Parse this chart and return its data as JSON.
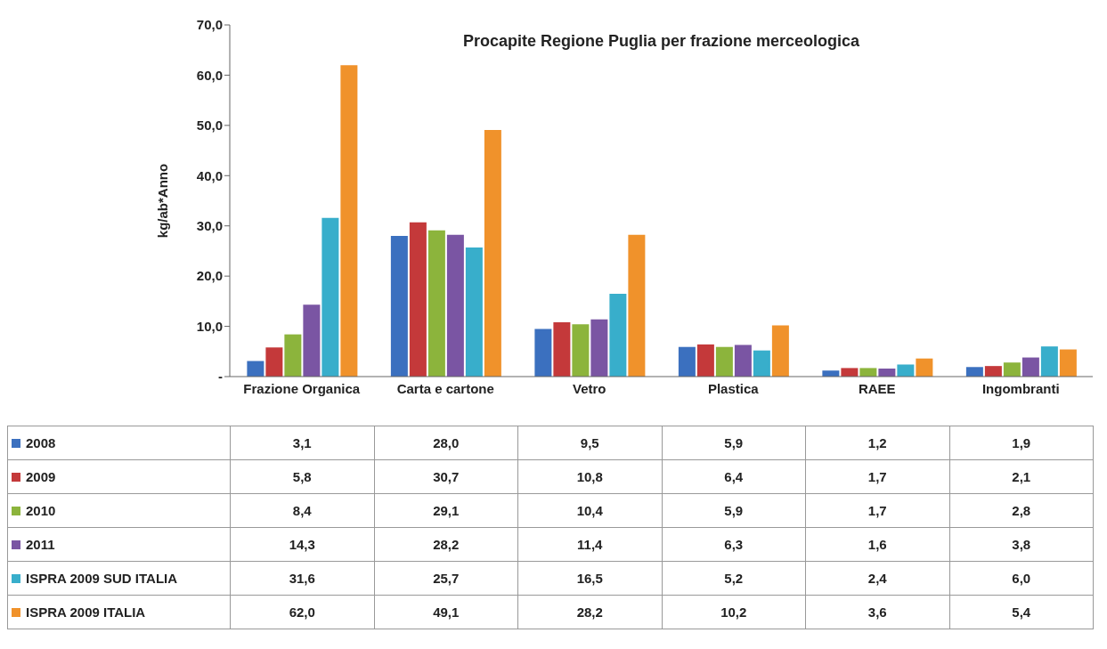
{
  "chart_data": {
    "type": "bar",
    "title": "Procapite Regione Puglia per frazione merceologica",
    "ylabel": "kg/ab*Anno",
    "categories": [
      "Frazione Organica",
      "Carta e cartone",
      "Vetro",
      "Plastica",
      "RAEE",
      "Ingombranti"
    ],
    "series": [
      {
        "name": "2008",
        "color": "#3b70bf",
        "values": [
          3.1,
          28.0,
          9.5,
          5.9,
          1.2,
          1.9
        ],
        "value_labels": [
          "3,1",
          "28,0",
          "9,5",
          "5,9",
          "1,2",
          "1,9"
        ]
      },
      {
        "name": "2009",
        "color": "#c4393a",
        "values": [
          5.8,
          30.7,
          10.8,
          6.4,
          1.7,
          2.1
        ],
        "value_labels": [
          "5,8",
          "30,7",
          "10,8",
          "6,4",
          "1,7",
          "2,1"
        ]
      },
      {
        "name": "2010",
        "color": "#8cb43c",
        "values": [
          8.4,
          29.1,
          10.4,
          5.9,
          1.7,
          2.8
        ],
        "value_labels": [
          "8,4",
          "29,1",
          "10,4",
          "5,9",
          "1,7",
          "2,8"
        ]
      },
      {
        "name": "2011",
        "color": "#7a55a3",
        "values": [
          14.3,
          28.2,
          11.4,
          6.3,
          1.6,
          3.8
        ],
        "value_labels": [
          "14,3",
          "28,2",
          "11,4",
          "6,3",
          "1,6",
          "3,8"
        ]
      },
      {
        "name": "ISPRA 2009 SUD ITALIA",
        "color": "#38aecb",
        "values": [
          31.6,
          25.7,
          16.5,
          5.2,
          2.4,
          6.0
        ],
        "value_labels": [
          "31,6",
          "25,7",
          "16,5",
          "5,2",
          "2,4",
          "6,0"
        ]
      },
      {
        "name": "ISPRA 2009 ITALIA",
        "color": "#f0922b",
        "values": [
          62.0,
          49.1,
          28.2,
          10.2,
          3.6,
          5.4
        ],
        "value_labels": [
          "62,0",
          "49,1",
          "28,2",
          "10,2",
          "3,6",
          "5,4"
        ]
      }
    ],
    "ylim": [
      0,
      70
    ],
    "yticks": [
      {
        "value": 0,
        "label": "-"
      },
      {
        "value": 10,
        "label": "10,0"
      },
      {
        "value": 20,
        "label": "20,0"
      },
      {
        "value": 30,
        "label": "30,0"
      },
      {
        "value": 40,
        "label": "40,0"
      },
      {
        "value": 50,
        "label": "50,0"
      },
      {
        "value": 60,
        "label": "60,0"
      },
      {
        "value": 70,
        "label": "70,0"
      }
    ],
    "grid": false,
    "legend": "bottom"
  }
}
